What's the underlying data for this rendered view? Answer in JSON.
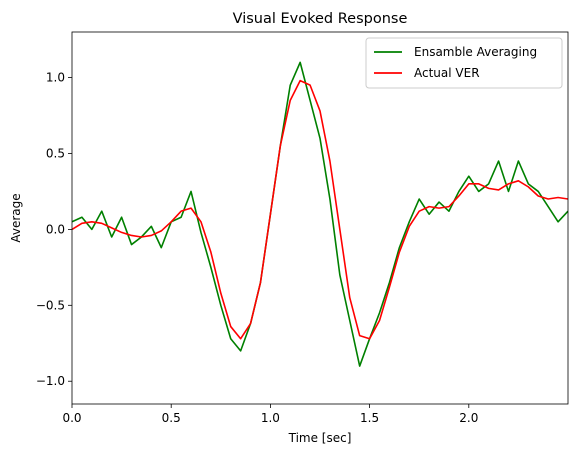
{
  "chart_data": {
    "type": "line",
    "title": "Visual Evoked Response",
    "xlabel": "Time [sec]",
    "ylabel": "Average",
    "xlim": [
      0,
      2.5
    ],
    "ylim": [
      -1.15,
      1.3
    ],
    "xticks": [
      {
        "value": 0.0,
        "label": "0.0"
      },
      {
        "value": 0.5,
        "label": "0.5"
      },
      {
        "value": 1.0,
        "label": "1.0"
      },
      {
        "value": 1.5,
        "label": "1.5"
      },
      {
        "value": 2.0,
        "label": "2.0"
      }
    ],
    "yticks": [
      {
        "value": -1.0,
        "label": "−1.0"
      },
      {
        "value": -0.5,
        "label": "−0.5"
      },
      {
        "value": 0.0,
        "label": "0.0"
      },
      {
        "value": 0.5,
        "label": "0.5"
      },
      {
        "value": 1.0,
        "label": "1.0"
      }
    ],
    "grid": false,
    "legend": "top-right",
    "series": [
      {
        "name": "Ensamble Averaging",
        "color": "#008000",
        "x": [
          0.0,
          0.05,
          0.1,
          0.15,
          0.2,
          0.25,
          0.3,
          0.35,
          0.4,
          0.45,
          0.5,
          0.55,
          0.6,
          0.65,
          0.7,
          0.75,
          0.8,
          0.85,
          0.9,
          0.95,
          1.0,
          1.05,
          1.1,
          1.15,
          1.2,
          1.25,
          1.3,
          1.35,
          1.4,
          1.45,
          1.5,
          1.55,
          1.6,
          1.65,
          1.7,
          1.75,
          1.8,
          1.85,
          1.9,
          1.95,
          2.0,
          2.05,
          2.1,
          2.15,
          2.2,
          2.25,
          2.3,
          2.35,
          2.4,
          2.45,
          2.5
        ],
        "values": [
          0.05,
          0.08,
          0.0,
          0.12,
          -0.05,
          0.08,
          -0.1,
          -0.05,
          0.02,
          -0.12,
          0.05,
          0.08,
          0.25,
          -0.02,
          -0.25,
          -0.5,
          -0.72,
          -0.8,
          -0.62,
          -0.35,
          0.1,
          0.55,
          0.95,
          1.1,
          0.85,
          0.6,
          0.2,
          -0.3,
          -0.6,
          -0.9,
          -0.72,
          -0.55,
          -0.35,
          -0.12,
          0.05,
          0.2,
          0.1,
          0.18,
          0.12,
          0.25,
          0.35,
          0.25,
          0.3,
          0.45,
          0.25,
          0.45,
          0.3,
          0.25,
          0.15,
          0.05,
          0.12
        ]
      },
      {
        "name": "Actual VER",
        "color": "#ff0000",
        "x": [
          0.0,
          0.05,
          0.1,
          0.15,
          0.2,
          0.25,
          0.3,
          0.35,
          0.4,
          0.45,
          0.5,
          0.55,
          0.6,
          0.65,
          0.7,
          0.75,
          0.8,
          0.85,
          0.9,
          0.95,
          1.0,
          1.05,
          1.1,
          1.15,
          1.2,
          1.25,
          1.3,
          1.35,
          1.4,
          1.45,
          1.5,
          1.55,
          1.6,
          1.65,
          1.7,
          1.75,
          1.8,
          1.85,
          1.9,
          1.95,
          2.0,
          2.05,
          2.1,
          2.15,
          2.2,
          2.25,
          2.3,
          2.35,
          2.4,
          2.45,
          2.5
        ],
        "values": [
          0.0,
          0.04,
          0.05,
          0.04,
          0.01,
          -0.02,
          -0.04,
          -0.05,
          -0.04,
          -0.01,
          0.05,
          0.12,
          0.14,
          0.05,
          -0.15,
          -0.42,
          -0.64,
          -0.72,
          -0.62,
          -0.35,
          0.1,
          0.55,
          0.85,
          0.98,
          0.95,
          0.78,
          0.45,
          0.0,
          -0.45,
          -0.7,
          -0.72,
          -0.6,
          -0.38,
          -0.15,
          0.02,
          0.12,
          0.15,
          0.14,
          0.15,
          0.22,
          0.3,
          0.3,
          0.27,
          0.26,
          0.3,
          0.32,
          0.28,
          0.22,
          0.2,
          0.21,
          0.2
        ]
      }
    ]
  }
}
